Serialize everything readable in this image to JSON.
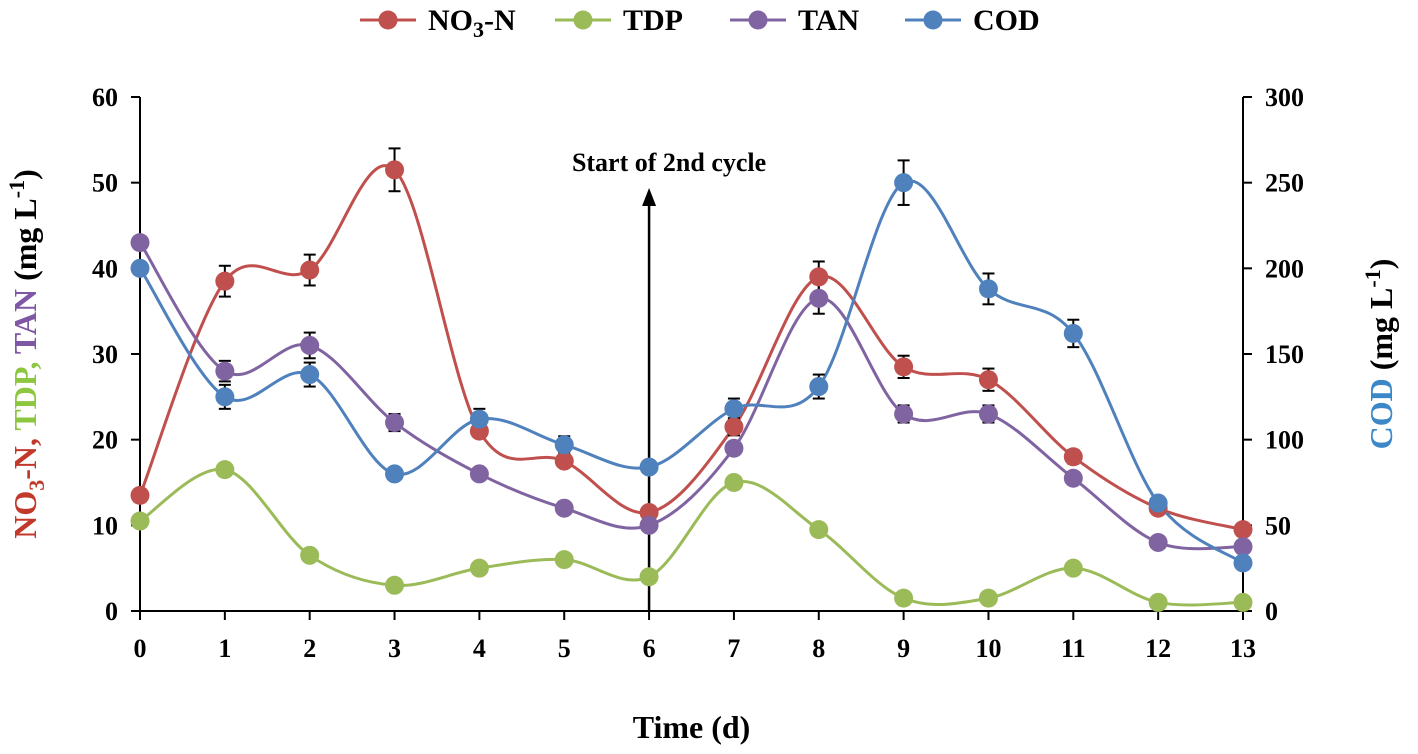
{
  "chart_data": {
    "type": "line",
    "x": [
      0,
      1,
      2,
      3,
      4,
      5,
      6,
      7,
      8,
      9,
      10,
      11,
      12,
      13
    ],
    "xlabel": "Time (d)",
    "xlim": [
      0,
      13
    ],
    "ylabel_left_parts": [
      {
        "text": "NO",
        "color": "#c0392b",
        "sub": "3",
        "tail": "-N, "
      },
      {
        "text": "TDP",
        "color": "#8dc63f",
        "tail": ", "
      },
      {
        "text": "TAN",
        "color": "#7e57a5",
        "tail": " "
      },
      {
        "text": "(mg L",
        "color": "#000000",
        "sup": "-1",
        "tail": ")"
      }
    ],
    "ylabel_right_parts": [
      {
        "text": "COD",
        "color": "#3b87c8",
        "tail": " "
      },
      {
        "text": "(mg L",
        "color": "#000000",
        "sup": "-1",
        "tail": ")"
      }
    ],
    "ylim_left": [
      0,
      60
    ],
    "ylim_right": [
      0,
      300
    ],
    "yticks_left": [
      0,
      10,
      20,
      30,
      40,
      50,
      60
    ],
    "yticks_right": [
      0,
      50,
      100,
      150,
      200,
      250,
      300
    ],
    "annotation": {
      "text": "Start of 2nd cycle",
      "x": 6
    },
    "series": [
      {
        "name": "NO3-N",
        "label_main": "NO",
        "label_sub": "3",
        "label_tail": "-N",
        "color": "#c0504d",
        "axis": "left",
        "values": [
          13.5,
          38.5,
          39.8,
          51.5,
          21.0,
          17.5,
          11.5,
          21.5,
          39.0,
          28.5,
          27.0,
          18.0,
          12.0,
          9.5
        ],
        "errors": [
          0,
          1.8,
          1.8,
          2.5,
          0,
          0,
          0,
          1.0,
          1.8,
          1.3,
          1.3,
          0.8,
          0,
          0
        ]
      },
      {
        "name": "TDP",
        "label_main": "TDP",
        "color": "#9bbb59",
        "axis": "left",
        "values": [
          10.5,
          16.5,
          6.5,
          3.0,
          5.0,
          6.0,
          4.0,
          15.0,
          9.5,
          1.5,
          1.5,
          5.0,
          1.0,
          1.0
        ],
        "errors": [
          0,
          0,
          0,
          0,
          0,
          0,
          0,
          0,
          0,
          0,
          0,
          0,
          0,
          0
        ]
      },
      {
        "name": "TAN",
        "label_main": "TAN",
        "color": "#8064a2",
        "axis": "left",
        "values": [
          43.0,
          28.0,
          31.0,
          22.0,
          16.0,
          12.0,
          10.0,
          19.0,
          36.5,
          23.0,
          23.0,
          15.5,
          8.0,
          7.5
        ],
        "errors": [
          0,
          1.2,
          1.5,
          1.0,
          0,
          0,
          0,
          0,
          1.8,
          1.0,
          1.0,
          0,
          0,
          0
        ]
      },
      {
        "name": "COD",
        "label_main": "COD",
        "color": "#4f81bd",
        "axis": "right",
        "values": [
          200,
          125,
          138,
          80,
          112,
          97,
          84,
          118,
          131,
          250,
          188,
          162,
          63,
          28
        ],
        "errors": [
          0,
          7,
          7,
          0,
          6,
          5,
          0,
          6,
          7,
          13,
          9,
          8,
          0,
          0
        ]
      }
    ]
  }
}
